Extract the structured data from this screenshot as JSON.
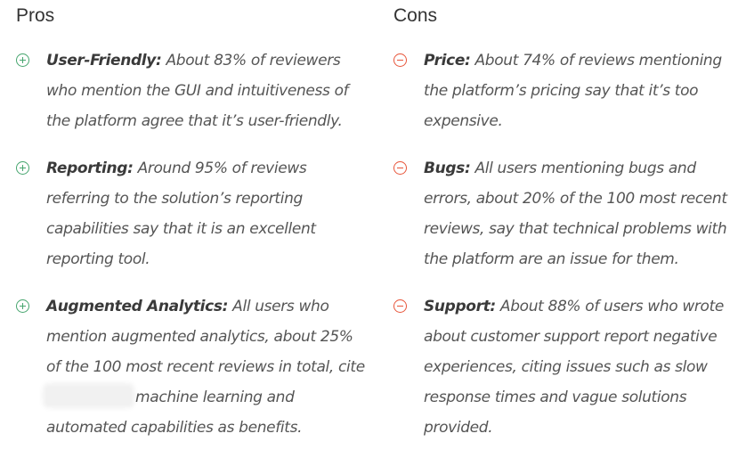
{
  "pros": {
    "heading": "Pros",
    "items": [
      {
        "title": "User-Friendly:",
        "body": " About 83% of reviewers who mention the GUI and intuitiveness of the platform agree that it’s user-friendly."
      },
      {
        "title": "Reporting:",
        "body": " Around 95% of reviews referring to the solution’s reporting capabilities say that it is an excellent reporting tool."
      },
      {
        "title": "Augmented Analytics:",
        "body": " All users who mention augmented analytics, about 25% of the 100 most recent reviews in total, cite ",
        "body_after": " machine learning and automated capabilities as benefits."
      }
    ]
  },
  "cons": {
    "heading": "Cons",
    "items": [
      {
        "title": "Price:",
        "body": " About 74% of reviews mentioning the platform’s pricing say that it’s too expensive."
      },
      {
        "title": "Bugs:",
        "body": " All users mentioning bugs and errors, about 20% of the 100 most recent reviews, say that technical problems with the platform are an issue for them."
      },
      {
        "title": "Support:",
        "body": " About 88% of users who wrote about customer support report negative experiences, citing issues such as slow response times and vague solutions provided."
      }
    ]
  },
  "colors": {
    "pro_icon": "#46a56e",
    "con_icon": "#e8553a"
  },
  "icons": {
    "pro": "plus-circle-icon",
    "con": "minus-circle-icon"
  }
}
